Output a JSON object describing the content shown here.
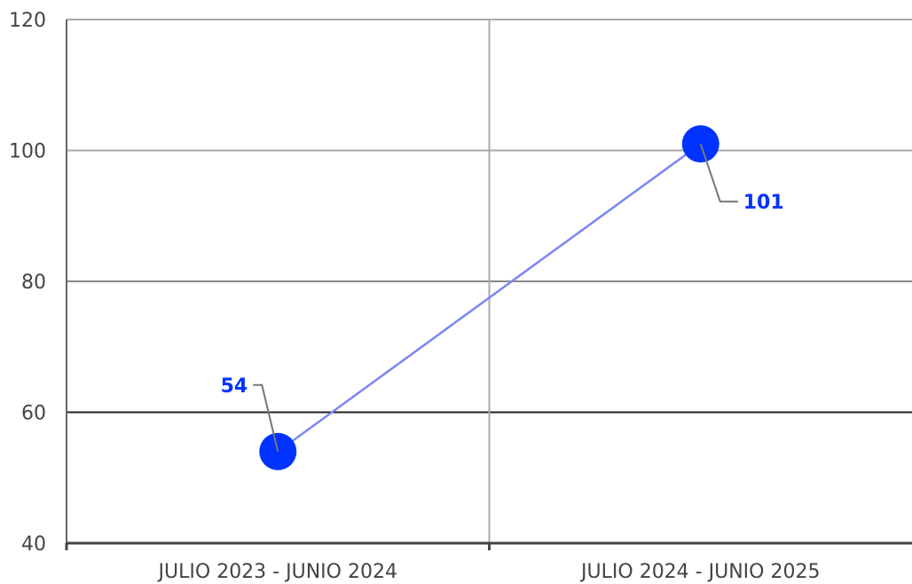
{
  "chart_data": {
    "type": "line",
    "categories": [
      "JULIO 2023 - JUNIO 2024",
      "JULIO 2024 - JUNIO 2025"
    ],
    "series": [
      {
        "values": [
          54,
          101
        ]
      }
    ],
    "data_labels": [
      "54",
      "101"
    ],
    "title": "",
    "xlabel": "",
    "ylabel": "",
    "ylim": [
      40,
      120
    ],
    "yticks": [
      40,
      60,
      80,
      100,
      120
    ],
    "ytick_labels": [
      "40",
      "60",
      "80",
      "100",
      "120"
    ],
    "grid": true,
    "colors": {
      "point": "#0033ff",
      "line": "#7b86f0",
      "label": "#0033ff",
      "leader": "#777777",
      "grid": "#aaaaaa",
      "axis": "#444444",
      "emphasis_grid": "#222222"
    }
  }
}
